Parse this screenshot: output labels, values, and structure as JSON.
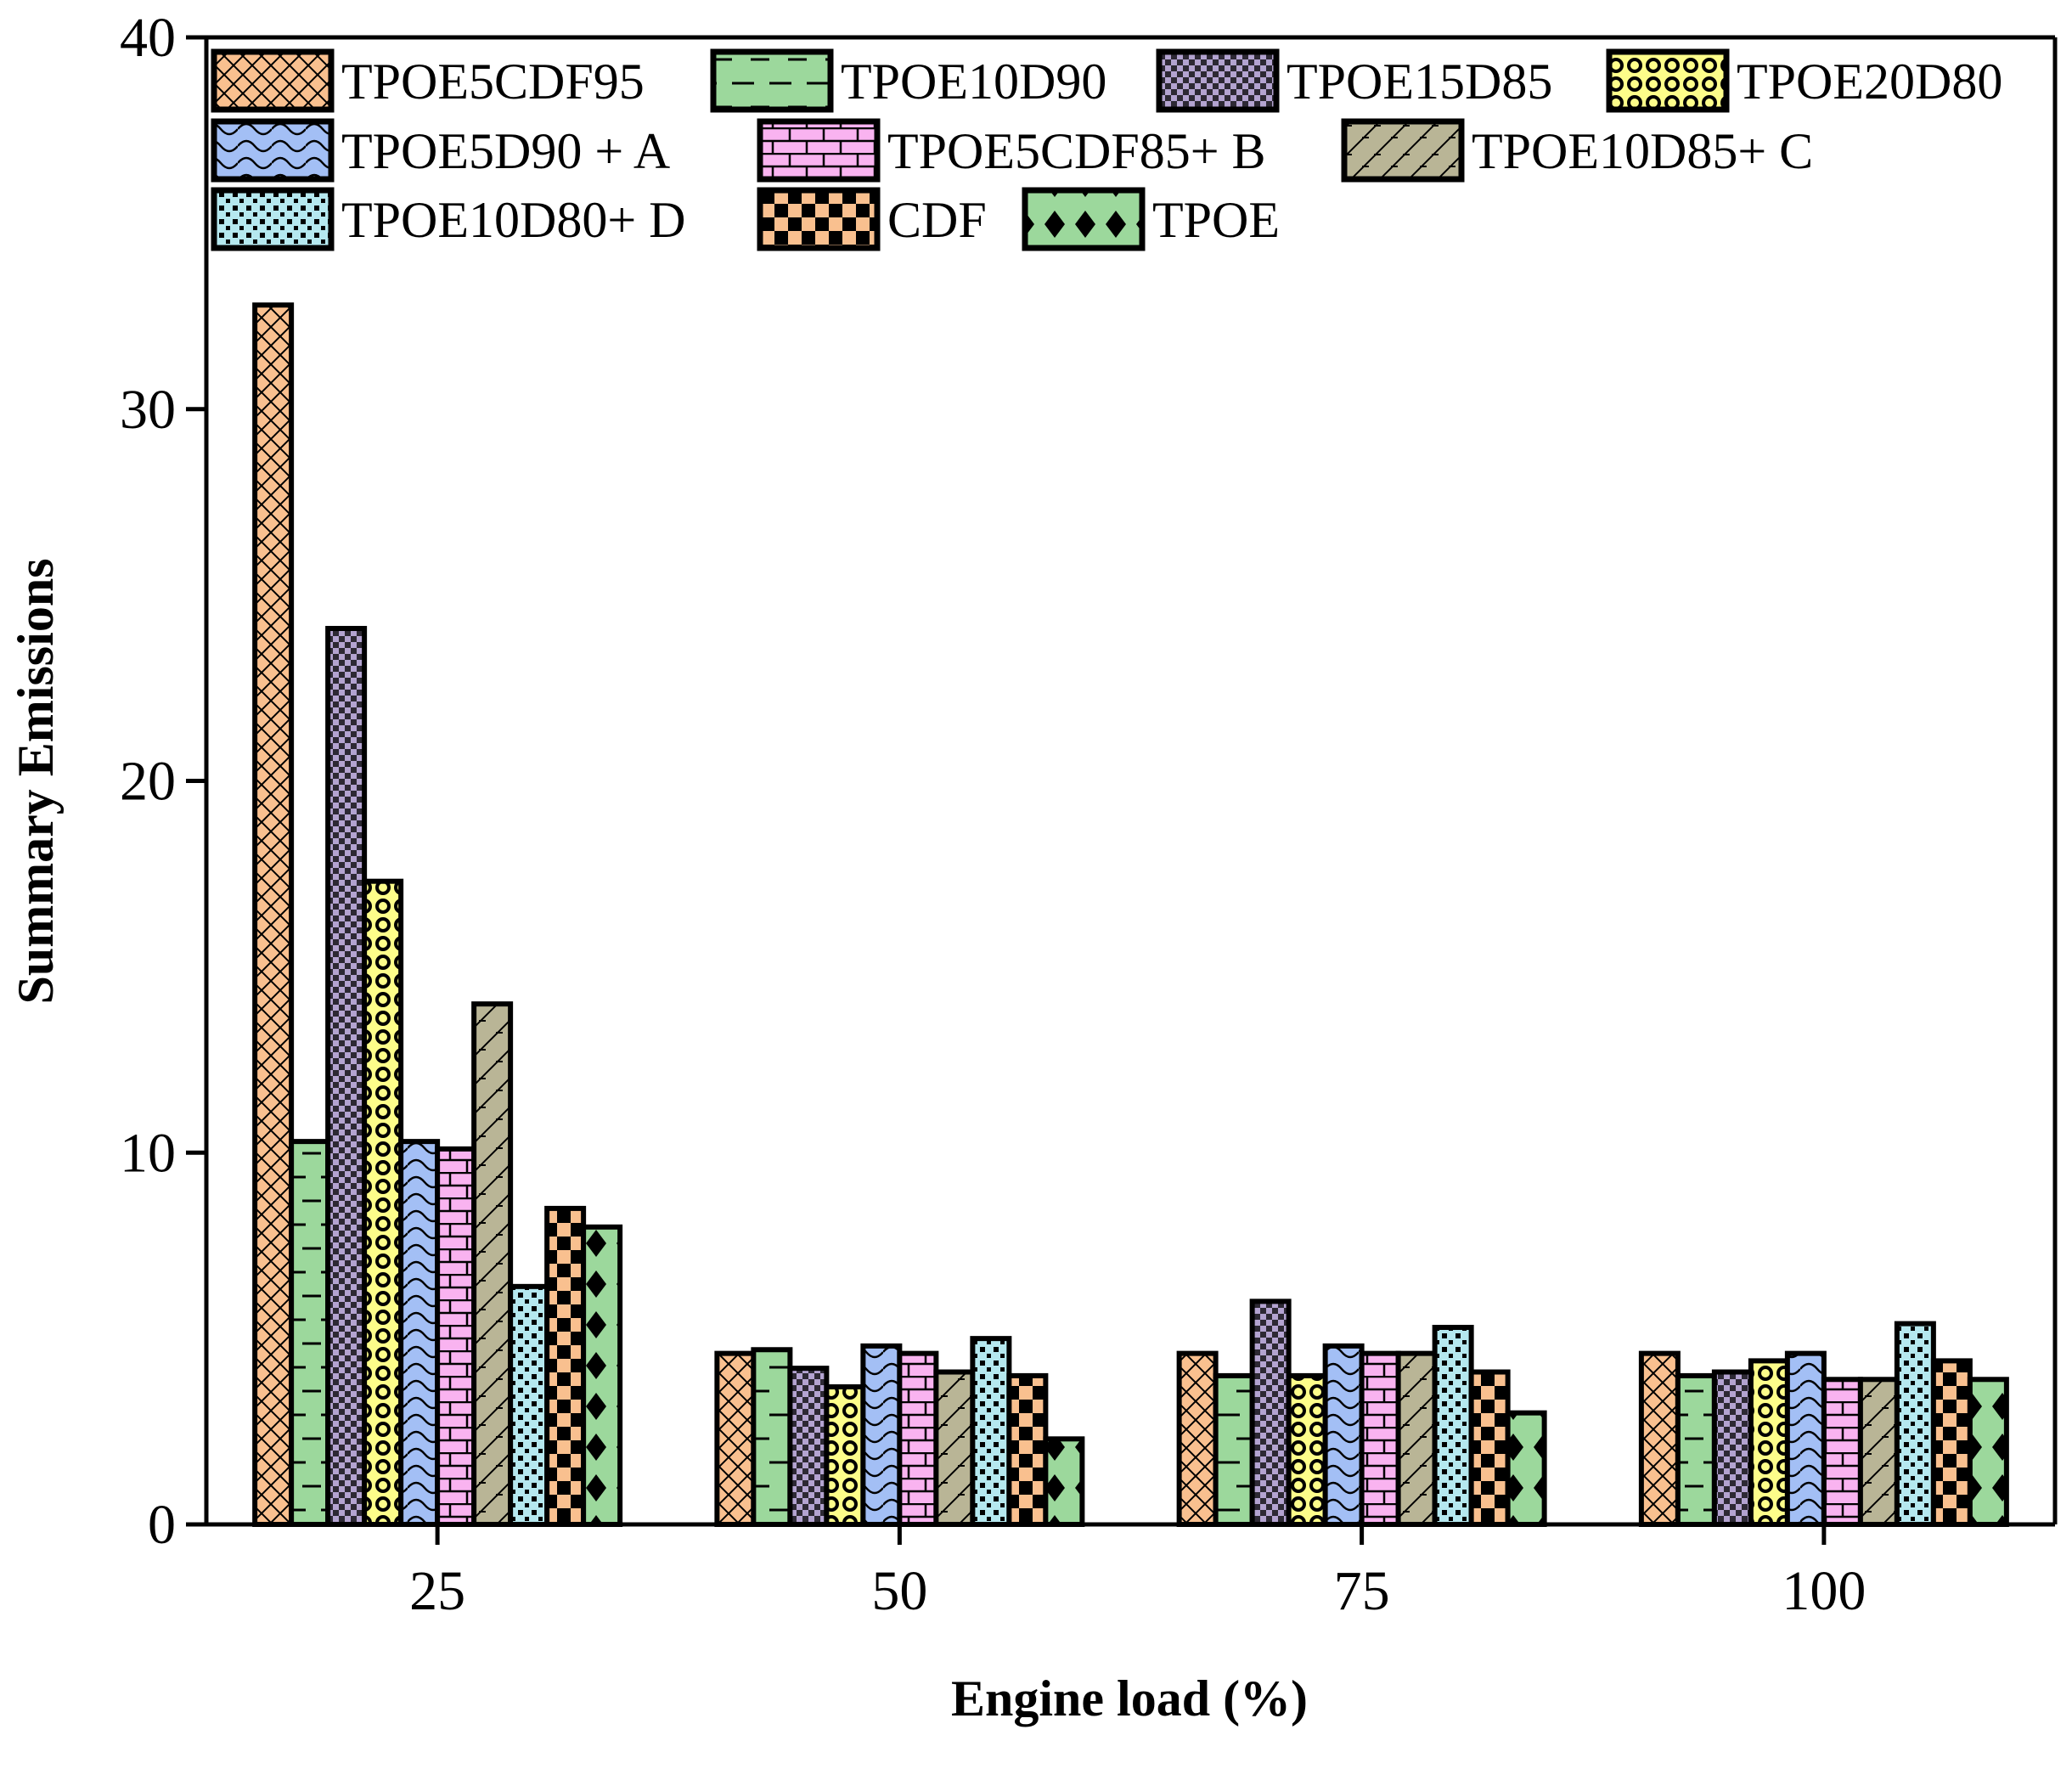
{
  "chart_data": {
    "type": "bar",
    "title": "",
    "xlabel": "Engine load (%)",
    "ylabel": "Summary Emissions",
    "ylim": [
      0,
      40
    ],
    "yticks": [
      0,
      10,
      20,
      30,
      40
    ],
    "categories": [
      "25",
      "50",
      "75",
      "100"
    ],
    "legend_position": "top",
    "series": [
      {
        "name": "TPOE5CDF95",
        "color": "#f9c08f",
        "pattern": "crosshatch",
        "values": [
          32.8,
          4.6,
          4.6,
          4.6
        ]
      },
      {
        "name": "TPOE10D90",
        "color": "#9cd89c",
        "pattern": "dash",
        "values": [
          10.3,
          4.7,
          4.0,
          4.0
        ]
      },
      {
        "name": "TPOE15D85",
        "color": "#b3a3d0",
        "pattern": "checker-small",
        "values": [
          24.1,
          4.2,
          6.0,
          4.1
        ]
      },
      {
        "name": "TPOE20D80",
        "color": "#fdfd8a",
        "pattern": "bubbles",
        "values": [
          17.3,
          3.7,
          4.0,
          4.4
        ]
      },
      {
        "name": "TPOE5D90 +  A",
        "color": "#a3bff5",
        "pattern": "wave",
        "values": [
          10.3,
          4.8,
          4.8,
          4.6
        ]
      },
      {
        "name": "TPOE5CDF85+ B",
        "color": "#f9b3f0",
        "pattern": "brick",
        "values": [
          10.1,
          4.6,
          4.6,
          3.9
        ]
      },
      {
        "name": "TPOE10D85+ C",
        "color": "#b9b596",
        "pattern": "diagonal",
        "values": [
          14.0,
          4.1,
          4.6,
          3.9
        ]
      },
      {
        "name": "TPOE10D80+ D",
        "color": "#b5e8ef",
        "pattern": "dots",
        "values": [
          6.4,
          5.0,
          5.3,
          5.4
        ]
      },
      {
        "name": "CDF",
        "color": "#f9c08f",
        "pattern": "checker-large",
        "values": [
          8.5,
          4.0,
          4.1,
          4.4
        ]
      },
      {
        "name": "TPOE",
        "color": "#9cd89c",
        "pattern": "diamond",
        "values": [
          8.0,
          2.3,
          3.0,
          3.9
        ]
      }
    ]
  }
}
